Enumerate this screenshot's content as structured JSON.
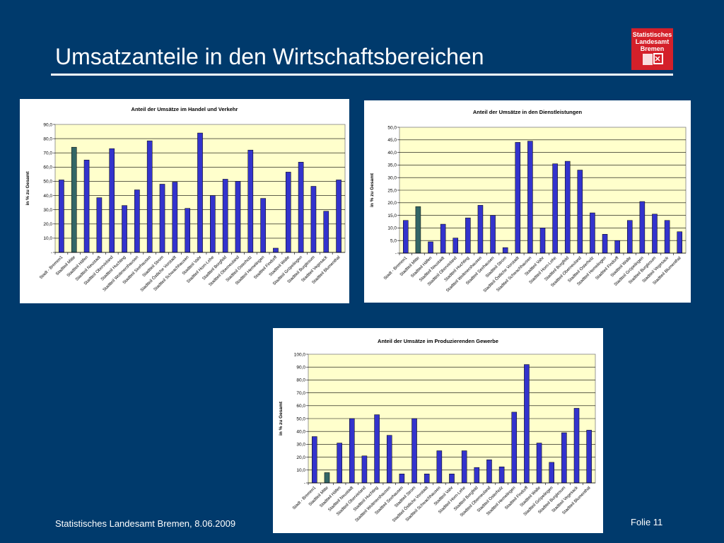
{
  "slide": {
    "title": "Umsatzanteile in den Wirtschaftsbereichen",
    "footer": "Statistisches Landesamt Bremen, 8.06.2009",
    "page": "Folie 11",
    "logo_lines": [
      "Statistisches",
      "Landesamt",
      "Bremen"
    ]
  },
  "colors": {
    "background": "#003a6c",
    "bar": "#3333cc",
    "bar_highlight": "#336666",
    "plot_area": "#ffffcc"
  },
  "chart_data": [
    {
      "type": "bar",
      "title": "Anteil der Umsätze im Handel und Verkehr",
      "ylabel": "in % zu Gesamt",
      "ylim": [
        0,
        90
      ],
      "yticks": [
        "-",
        "10,0",
        "20,0",
        "30,0",
        "40,0",
        "50,0",
        "60,0",
        "70,0",
        "80,0",
        "90,0"
      ],
      "grid": true,
      "highlight_index": 1,
      "categories": [
        "Stadt - Bremen1",
        "Stadtteil Mitte",
        "Stadtteil Häfen",
        "Stadtteil Neustadt",
        "Stadtteil Obervieland",
        "Stadtteil Huchting",
        "Stadtteil Woltmershausen",
        "Stadtteil Seehausen",
        "Stadtteil Strom",
        "Stadtteil Östliche Vorstadt",
        "Stadtteil Schwachhausen",
        "Stadtteil Vahr",
        "Stadtteil Horn-Lehe",
        "Stadtteil Borgfeld",
        "Stadtteil Oberneuland",
        "Stadtteil Osterholz",
        "Stadtteil Hemelingen",
        "Stadtteil Findorff",
        "Stadtteil Walle",
        "Stadtteil Gröpelingen",
        "Stadtteil Burglesum",
        "Stadtteil Vegesack",
        "Stadtteil Blumenthal"
      ],
      "values": [
        51,
        74,
        65,
        38.5,
        73,
        33,
        44,
        78.5,
        48,
        49.5,
        31,
        84,
        40,
        51.5,
        50,
        72,
        38,
        3,
        56.5,
        63.5,
        46.5,
        29,
        51
      ]
    },
    {
      "type": "bar",
      "title": "Anteil der Umsätze in den Dienstleistungen",
      "ylabel": "in % zu Gesamt",
      "ylim": [
        0,
        50
      ],
      "yticks": [
        "-",
        "5,0",
        "10,0",
        "15,0",
        "20,0",
        "25,0",
        "30,0",
        "35,0",
        "40,0",
        "45,0",
        "50,0"
      ],
      "grid": true,
      "highlight_index": 1,
      "categories": [
        "Stadt - Bremen1",
        "Stadtteil Mitte",
        "Stadtteil Häfen",
        "Stadtteil Neustadt",
        "Stadtteil Obervieland",
        "Stadtteil Huchting",
        "Stadtteil Woltmershausen",
        "Stadtteil Seehausen",
        "Stadtteil Strom",
        "Stadtteil Östliche Vorstadt",
        "Stadtteil Schwachhausen",
        "Stadtteil Vahr",
        "Stadtteil Horn-Lehe",
        "Stadtteil Borgfeld",
        "Stadtteil Oberneuland",
        "Stadtteil Osterholz",
        "Stadtteil Hemelingen",
        "Stadtteil Findorff",
        "Stadtteil Walle",
        "Stadtteil Gröpelingen",
        "Stadtteil Burglesum",
        "Stadtteil Vegesack",
        "Stadtteil Blumenthal"
      ],
      "values": [
        13,
        18.5,
        4.5,
        11.5,
        6,
        14,
        19,
        15,
        2.2,
        44,
        44.5,
        10,
        35.5,
        36.5,
        33,
        16,
        7.5,
        5,
        13,
        20.5,
        15.5,
        13,
        8.5
      ]
    },
    {
      "type": "bar",
      "title": "Anteil der Umsätze im Produzierenden Gewerbe",
      "ylabel": "in % zu Gesamt",
      "ylim": [
        0,
        100
      ],
      "yticks": [
        "-",
        "10,0",
        "20,0",
        "30,0",
        "40,0",
        "50,0",
        "60,0",
        "70,0",
        "80,0",
        "90,0",
        "100,0"
      ],
      "grid": true,
      "highlight_index": 1,
      "categories": [
        "Stadt - Bremen1",
        "Stadtteil Mitte",
        "Stadtteil Häfen",
        "Stadtteil Neustadt",
        "Stadtteil Obervieland",
        "Stadtteil Huchting",
        "Stadtteil Woltmershausen",
        "Stadtteil Seehausen",
        "Stadtteil Strom",
        "Stadtteil Östliche Vorstadt",
        "Stadtteil Schwachhausen",
        "Stadtteil Vahr",
        "Stadtteil Horn-Lehe",
        "Stadtteil Borgfeld",
        "Stadtteil Oberneuland",
        "Stadtteil Osterholz",
        "Stadtteil Hemelingen",
        "Stadtteil Findorff",
        "Stadtteil Walle",
        "Stadtteil Gröpelingen",
        "Stadtteil Burglesum",
        "Stadtteil Vegesack",
        "Stadtteil Blumenthal"
      ],
      "values": [
        36,
        8,
        31,
        50,
        21,
        53,
        37,
        7,
        50,
        7,
        25,
        7,
        25,
        12,
        18,
        12.5,
        55,
        92,
        31,
        16,
        39,
        58,
        41
      ]
    }
  ]
}
